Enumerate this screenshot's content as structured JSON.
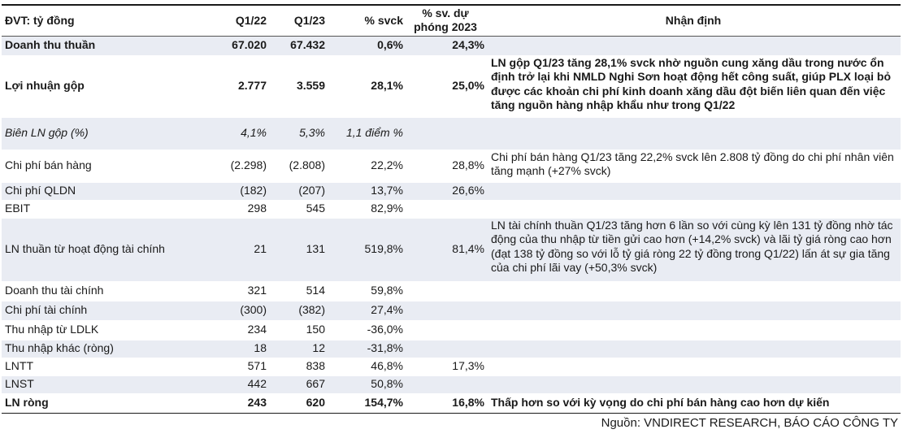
{
  "header": {
    "unit": "ĐVT: tỷ đồng",
    "q1_22": "Q1/22",
    "q1_23": "Q1/23",
    "yoy": "% svck",
    "plan_line1": "% sv. dự",
    "plan_line2": "phóng 2023",
    "comment": "Nhận định"
  },
  "rows": [
    {
      "label": "Doanh thu thuần",
      "q1_22": "67.020",
      "q1_23": "67.432",
      "yoy": "0,6%",
      "plan": "24,3%",
      "note": ""
    },
    {
      "label": "Lợi nhuận gộp",
      "q1_22": "2.777",
      "q1_23": "3.559",
      "yoy": "28,1%",
      "plan": "25,0%",
      "note": "LN gộp Q1/23 tăng 28,1% svck nhờ nguồn cung xăng dầu trong nước ổn định trở lại khi NMLD Nghi Sơn hoạt động hết công suất, giúp PLX loại bỏ được các khoản chi phí kinh doanh xăng dầu đột biến liên quan đến việc tăng nguồn hàng nhập khẩu như trong Q1/22"
    },
    {
      "label": "Biên LN gộp (%)",
      "q1_22": "4,1%",
      "q1_23": "5,3%",
      "yoy": "1,1 điểm %",
      "plan": "",
      "note": ""
    },
    {
      "label": "Chi phí bán hàng",
      "q1_22": "(2.298)",
      "q1_23": "(2.808)",
      "yoy": "22,2%",
      "plan": "28,8%",
      "note": "Chi phí bán hàng Q1/23 tăng 22,2% svck lên 2.808 tỷ đồng do chi phí nhân viên tăng mạnh (+27% svck)"
    },
    {
      "label": "Chi phí QLDN",
      "q1_22": "(182)",
      "q1_23": "(207)",
      "yoy": "13,7%",
      "plan": "26,6%",
      "note": ""
    },
    {
      "label": "EBIT",
      "q1_22": "298",
      "q1_23": "545",
      "yoy": "82,9%",
      "plan": "",
      "note": ""
    },
    {
      "label": "LN thuần từ hoạt động tài chính",
      "q1_22": "21",
      "q1_23": "131",
      "yoy": "519,8%",
      "plan": "81,4%",
      "note": "LN tài chính thuần Q1/23 tăng hơn 6 lần so với cùng kỳ lên 131 tỷ đồng nhờ tác động của thu nhập từ tiền gửi cao hơn (+14,2% svck) và lãi tỷ giá ròng cao hơn (đạt 138 tỷ đồng so với lỗ tỷ giá ròng 22 tỷ đồng trong Q1/22) lấn át sự gia tăng của chi phí lãi vay (+50,3% svck)"
    },
    {
      "label": "Doanh thu tài chính",
      "q1_22": "321",
      "q1_23": "514",
      "yoy": "59,8%",
      "plan": "",
      "note": ""
    },
    {
      "label": "Chi phí tài chính",
      "q1_22": "(300)",
      "q1_23": "(382)",
      "yoy": "27,4%",
      "plan": "",
      "note": ""
    },
    {
      "label": "Thu nhập từ LDLK",
      "q1_22": "234",
      "q1_23": "150",
      "yoy": "-36,0%",
      "plan": "",
      "note": ""
    },
    {
      "label": "Thu nhập khác (ròng)",
      "q1_22": "18",
      "q1_23": "12",
      "yoy": "-31,8%",
      "plan": "",
      "note": ""
    },
    {
      "label": "LNTT",
      "q1_22": "571",
      "q1_23": "838",
      "yoy": "46,8%",
      "plan": "17,3%",
      "note": ""
    },
    {
      "label": "LNST",
      "q1_22": "442",
      "q1_23": "667",
      "yoy": "50,8%",
      "plan": "",
      "note": ""
    },
    {
      "label": "LN ròng",
      "q1_22": "243",
      "q1_23": "620",
      "yoy": "154,7%",
      "plan": "16,8%",
      "note": "Thấp hơn so với kỳ vọng do chi phí bán hàng cao hơn dự kiến"
    }
  ],
  "source": "Nguồn: VNDIRECT RESEARCH, BÁO CÁO CÔNG TY"
}
